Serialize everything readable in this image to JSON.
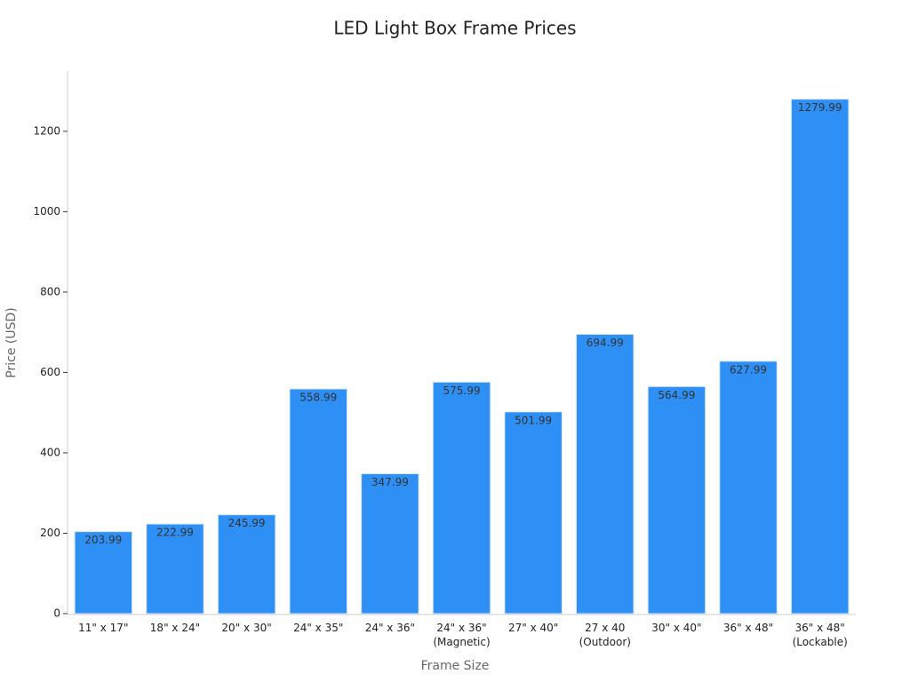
{
  "chart_data": {
    "type": "bar",
    "title": "LED Light Box Frame Prices",
    "x_label": "Frame Size",
    "y_label": "Price (USD)",
    "categories": [
      "11\" x 17\"",
      "18\" x 24\"",
      "20\" x 30\"",
      "24\" x 35\"",
      "24\" x 36\"",
      "24\" x 36\"\n(Magnetic)",
      "27\" x 40\"",
      "27 x 40\n(Outdoor)",
      "30\" x 40\"",
      "36\" x 48\"",
      "36\" x 48\"\n(Lockable)"
    ],
    "values": [
      203.99,
      222.99,
      245.99,
      558.99,
      347.99,
      575.99,
      501.99,
      694.99,
      564.99,
      627.99,
      1279.99
    ],
    "color": "#2e8ff5",
    "ylim": [
      0,
      1350
    ],
    "yticks": [
      0,
      200,
      400,
      600,
      800,
      1000,
      1200
    ],
    "grid": false
  }
}
